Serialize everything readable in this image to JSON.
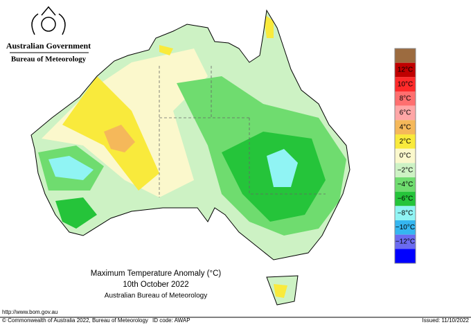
{
  "header": {
    "title": "Australian Government",
    "subtitle": "Bureau of Meteorology"
  },
  "map": {
    "title": "Maximum Temperature Anomaly (°C)",
    "date": "10th October 2022",
    "source": "Australian Bureau of Meteorology"
  },
  "legend": {
    "colors": [
      "#9c6b3f",
      "#c00000",
      "#ff2a2a",
      "#ff6f6f",
      "#ffa6a6",
      "#f5b85a",
      "#f9ea3c",
      "#fbf8cc",
      "#cdf2c4",
      "#6fdc6f",
      "#25c43a",
      "#90f4f4",
      "#35b6f0",
      "#6b6bf0",
      "#0000ff"
    ],
    "labels": [
      "12°C",
      "10°C",
      "8°C",
      "6°C",
      "4°C",
      "2°C",
      "0°C",
      "−2°C",
      "−4°C",
      "−6°C",
      "−8°C",
      "−10°C",
      "−12°C"
    ]
  },
  "footer": {
    "url": "http://www.bom.gov.au",
    "copyright": "© Commonwealth of Australia 2022, Bureau of Meteorology",
    "id_code": "ID code: AWAP",
    "issued": "Issued: 11/10/2022"
  }
}
